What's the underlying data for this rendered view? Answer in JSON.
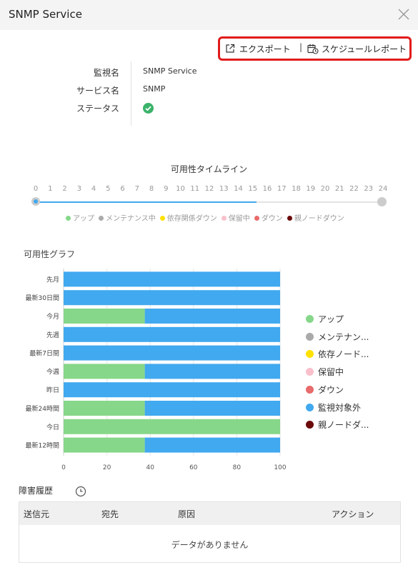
{
  "header": {
    "title": "SNMP Service",
    "close_icon": "close-icon"
  },
  "actions": {
    "export_label": "エクスポート",
    "separator": "|",
    "schedule_label": "スケジュールレポート"
  },
  "info": {
    "monitor_label": "監視名",
    "monitor_value": "SNMP Service",
    "service_label": "サービス名",
    "service_value": "SNMP",
    "status_label": "ステータス",
    "status_icon": "check-circle-icon"
  },
  "timeline": {
    "title": "可用性タイムライン",
    "ticks": [
      "0",
      "1",
      "2",
      "3",
      "4",
      "5",
      "6",
      "7",
      "8",
      "9",
      "10",
      "11",
      "12",
      "13",
      "14",
      "15",
      "16",
      "17",
      "18",
      "19",
      "20",
      "21",
      "22",
      "23",
      "24"
    ],
    "legend": [
      {
        "label": "アップ",
        "color": "#86d789"
      },
      {
        "label": "メンテナンス中",
        "color": "#aaaaaa"
      },
      {
        "label": "依存関係ダウン",
        "color": "#ffe100"
      },
      {
        "label": "保留中",
        "color": "#f9c0cb"
      },
      {
        "label": "ダウン",
        "color": "#e86a6a"
      },
      {
        "label": "親ノードダウン",
        "color": "#6b0a0a"
      }
    ]
  },
  "graph": {
    "title": "可用性グラフ",
    "legend": [
      {
        "label": "アップ",
        "color": "#86d789"
      },
      {
        "label": "メンテナン...",
        "color": "#aaaaaa"
      },
      {
        "label": "依存ノード...",
        "color": "#ffe100"
      },
      {
        "label": "保留中",
        "color": "#f9c0cb"
      },
      {
        "label": "ダウン",
        "color": "#e86a6a"
      },
      {
        "label": "監視対象外",
        "color": "#41a9ef"
      },
      {
        "label": "親ノードダ...",
        "color": "#6b0a0a"
      }
    ]
  },
  "chart_data": {
    "type": "bar",
    "orientation": "horizontal",
    "stacked": true,
    "categories": [
      "先月",
      "最新30日間",
      "今月",
      "先週",
      "最新7日間",
      "今週",
      "昨日",
      "最新24時間",
      "今日",
      "最新12時間"
    ],
    "series": [
      {
        "name": "アップ",
        "color": "#86d789",
        "values": [
          0,
          0,
          37.5,
          0,
          0,
          37.5,
          0,
          37.5,
          100,
          37.5
        ]
      },
      {
        "name": "監視対象外",
        "color": "#41a9ef",
        "values": [
          100,
          100,
          62.5,
          100,
          100,
          62.5,
          100,
          62.5,
          0,
          62.5
        ]
      }
    ],
    "xticks": [
      "0",
      "20",
      "40",
      "60",
      "80",
      "100"
    ],
    "xlim": [
      0,
      100
    ],
    "grid": true,
    "legend_position": "right"
  },
  "history": {
    "title": "障害履歴",
    "icon": "clock-icon",
    "columns": [
      "送信元",
      "宛先",
      "原因",
      "アクション"
    ],
    "empty_text": "データがありません"
  }
}
